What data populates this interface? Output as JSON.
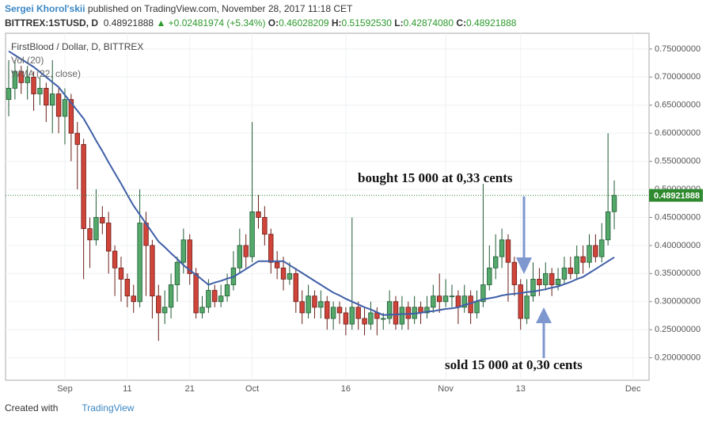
{
  "header": {
    "author": "Sergei Khorol'skii",
    "published": "published on TradingView.com, November 28, 2017 11:18 CET",
    "symbol": "BITTREX:1STUSD, D",
    "last": "0.48921888",
    "change": "+0.02481974 (+5.34%)",
    "o_label": "O:",
    "open": "0.46028209",
    "h_label": "H:",
    "high": "0.51592530",
    "l_label": "L:",
    "low": "0.42874080",
    "c_label": "C:",
    "close": "0.48921888"
  },
  "footer": {
    "created": "Created with",
    "brand": "TradingView"
  },
  "chart_data": {
    "type": "candlestick",
    "title": "FirstBlood / Dollar, D, BITTREX",
    "volume_label": "Vol (20)",
    "up_color": "#53a86a",
    "down_color": "#d0443a",
    "last_price_color": "#2f8a2f",
    "categories": [
      null,
      null,
      null,
      null,
      null,
      null,
      null,
      null,
      null,
      "Sep",
      null,
      null,
      null,
      null,
      null,
      null,
      null,
      null,
      null,
      "11",
      null,
      null,
      null,
      null,
      null,
      null,
      null,
      null,
      null,
      "21",
      null,
      null,
      null,
      null,
      null,
      null,
      null,
      null,
      null,
      "Oct",
      null,
      null,
      null,
      null,
      null,
      null,
      null,
      null,
      null,
      null,
      null,
      null,
      null,
      null,
      "16",
      null,
      null,
      null,
      null,
      null,
      null,
      null,
      null,
      null,
      null,
      null,
      null,
      null,
      null,
      null,
      "Nov",
      null,
      null,
      null,
      null,
      null,
      null,
      null,
      null,
      null,
      null,
      null,
      "13",
      null,
      null,
      null,
      null,
      null,
      null,
      null,
      null,
      null,
      null,
      null,
      null,
      null,
      null,
      null,
      null,
      null,
      "Dec"
    ],
    "open": [
      0.66,
      0.68,
      0.71,
      0.69,
      0.7,
      0.67,
      0.68,
      0.65,
      0.67,
      0.63,
      0.66,
      0.6,
      0.58,
      0.43,
      0.41,
      0.45,
      0.44,
      0.39,
      0.36,
      0.34,
      0.31,
      0.3,
      0.44,
      0.4,
      0.31,
      0.28,
      0.29,
      0.33,
      0.37,
      0.41,
      0.35,
      0.28,
      0.29,
      0.32,
      0.3,
      0.31,
      0.33,
      0.36,
      0.4,
      0.38,
      0.46,
      0.45,
      0.42,
      0.37,
      0.36,
      0.34,
      0.35,
      0.3,
      0.28,
      0.31,
      0.29,
      0.3,
      0.27,
      0.29,
      0.28,
      0.26,
      0.29,
      0.27,
      0.26,
      0.28,
      0.27,
      0.27,
      0.3,
      0.26,
      0.29,
      0.27,
      0.29,
      0.28,
      0.29,
      0.31,
      0.3,
      0.31,
      0.31,
      0.29,
      0.31,
      0.28,
      0.3,
      0.33,
      0.36,
      0.38,
      0.41,
      0.37,
      0.33,
      0.27,
      0.31,
      0.34,
      0.33,
      0.35,
      0.33,
      0.34,
      0.36,
      0.35,
      0.38,
      0.37,
      0.4,
      0.38,
      0.41,
      0.46028209,
      null,
      null,
      null
    ],
    "high": [
      0.73,
      0.73,
      0.72,
      0.72,
      0.71,
      0.7,
      0.69,
      0.73,
      0.68,
      0.68,
      0.67,
      0.62,
      0.59,
      0.45,
      0.5,
      0.47,
      0.46,
      0.4,
      0.38,
      0.35,
      0.33,
      0.5,
      0.46,
      0.41,
      0.33,
      0.32,
      0.35,
      0.38,
      0.43,
      0.42,
      0.36,
      0.31,
      0.34,
      0.33,
      0.33,
      0.35,
      0.39,
      0.43,
      0.42,
      0.62,
      0.49,
      0.47,
      0.43,
      0.39,
      0.38,
      0.37,
      0.36,
      0.32,
      0.33,
      0.32,
      0.32,
      0.31,
      0.3,
      0.3,
      0.29,
      0.45,
      0.3,
      0.29,
      0.3,
      0.29,
      0.28,
      0.32,
      0.31,
      0.31,
      0.3,
      0.31,
      0.3,
      0.31,
      0.33,
      0.35,
      0.34,
      0.33,
      0.32,
      0.33,
      0.32,
      0.32,
      0.51,
      0.4,
      0.42,
      0.43,
      0.42,
      0.38,
      0.34,
      0.34,
      0.37,
      0.36,
      0.37,
      0.36,
      0.36,
      0.38,
      0.38,
      0.4,
      0.4,
      0.42,
      0.42,
      0.44,
      0.6,
      0.5159253,
      null,
      null,
      null
    ],
    "low": [
      0.63,
      0.66,
      0.67,
      0.66,
      0.64,
      0.65,
      0.62,
      0.6,
      0.6,
      0.58,
      0.55,
      0.5,
      0.34,
      0.36,
      0.4,
      0.42,
      0.35,
      0.31,
      0.3,
      0.29,
      0.28,
      0.29,
      0.31,
      0.27,
      0.23,
      0.26,
      0.27,
      0.3,
      0.35,
      0.33,
      0.27,
      0.27,
      0.28,
      0.29,
      0.29,
      0.3,
      0.32,
      0.35,
      0.36,
      0.37,
      0.43,
      0.4,
      0.35,
      0.34,
      0.32,
      0.33,
      0.28,
      0.26,
      0.27,
      0.27,
      0.27,
      0.25,
      0.25,
      0.26,
      0.24,
      0.25,
      0.25,
      0.24,
      0.25,
      0.24,
      0.25,
      0.26,
      0.25,
      0.25,
      0.25,
      0.26,
      0.26,
      0.27,
      0.28,
      0.28,
      0.29,
      0.29,
      0.26,
      0.28,
      0.26,
      0.27,
      0.29,
      0.32,
      0.34,
      0.36,
      0.3,
      0.31,
      0.25,
      0.26,
      0.3,
      0.31,
      0.32,
      0.31,
      0.32,
      0.33,
      0.34,
      0.34,
      0.35,
      0.36,
      0.37,
      0.37,
      0.4,
      0.4287408,
      null,
      null,
      null
    ],
    "close": [
      0.68,
      0.71,
      0.69,
      0.7,
      0.67,
      0.68,
      0.65,
      0.67,
      0.63,
      0.66,
      0.6,
      0.58,
      0.43,
      0.41,
      0.45,
      0.44,
      0.39,
      0.36,
      0.34,
      0.31,
      0.3,
      0.44,
      0.4,
      0.31,
      0.28,
      0.29,
      0.33,
      0.37,
      0.41,
      0.35,
      0.28,
      0.29,
      0.32,
      0.3,
      0.31,
      0.33,
      0.36,
      0.4,
      0.38,
      0.46,
      0.45,
      0.42,
      0.37,
      0.36,
      0.34,
      0.35,
      0.3,
      0.28,
      0.31,
      0.29,
      0.3,
      0.27,
      0.29,
      0.28,
      0.26,
      0.29,
      0.27,
      0.26,
      0.28,
      0.27,
      0.27,
      0.3,
      0.26,
      0.29,
      0.27,
      0.29,
      0.28,
      0.29,
      0.31,
      0.3,
      0.31,
      0.31,
      0.29,
      0.31,
      0.28,
      0.3,
      0.33,
      0.36,
      0.38,
      0.41,
      0.37,
      0.33,
      0.27,
      0.31,
      0.34,
      0.33,
      0.35,
      0.33,
      0.34,
      0.36,
      0.35,
      0.38,
      0.37,
      0.4,
      0.38,
      0.41,
      0.46,
      0.48921888,
      null,
      null,
      null
    ],
    "ma": {
      "name": "WMA (22, close)",
      "color": "#3f5fa8",
      "values": [
        0.746,
        0.739,
        0.732,
        0.725,
        0.718,
        0.709,
        0.7,
        0.691,
        0.682,
        0.668,
        0.654,
        0.64,
        0.626,
        0.607,
        0.587,
        0.568,
        0.548,
        0.529,
        0.51,
        0.49,
        0.471,
        0.455,
        0.439,
        0.423,
        0.407,
        0.397,
        0.386,
        0.376,
        0.365,
        0.356,
        0.348,
        0.339,
        0.33,
        0.334,
        0.337,
        0.341,
        0.344,
        0.351,
        0.358,
        0.365,
        0.372,
        0.372,
        0.372,
        0.372,
        0.372,
        0.365,
        0.358,
        0.351,
        0.344,
        0.337,
        0.33,
        0.323,
        0.316,
        0.311,
        0.305,
        0.3,
        0.295,
        0.29,
        0.286,
        0.281,
        0.276,
        0.277,
        0.277,
        0.278,
        0.278,
        0.279,
        0.28,
        0.282,
        0.283,
        0.285,
        0.287,
        0.288,
        0.29,
        0.294,
        0.297,
        0.301,
        0.304,
        0.306,
        0.308,
        0.311,
        0.313,
        0.314,
        0.315,
        0.317,
        0.318,
        0.32,
        0.322,
        0.325,
        0.327,
        0.331,
        0.335,
        0.34,
        0.344,
        0.351,
        0.358,
        0.365,
        0.372,
        0.379,
        null,
        null,
        null
      ]
    },
    "ylim": [
      0.16,
      0.778
    ],
    "yticks": [
      {
        "value": 0.2,
        "label": "0.20000000"
      },
      {
        "value": 0.25,
        "label": "0.25000000"
      },
      {
        "value": 0.3,
        "label": "0.30000000"
      },
      {
        "value": 0.35,
        "label": "0.35000000"
      },
      {
        "value": 0.4,
        "label": "0.40000000"
      },
      {
        "value": 0.45,
        "label": "0.45000000"
      },
      {
        "value": 0.5,
        "label": "0.50000000"
      },
      {
        "value": 0.55,
        "label": "0.55000000"
      },
      {
        "value": 0.6,
        "label": "0.60000000"
      },
      {
        "value": 0.65,
        "label": "0.65000000"
      },
      {
        "value": 0.7,
        "label": "0.70000000"
      },
      {
        "value": 0.75,
        "label": "0.75000000"
      }
    ],
    "annotations": [
      "bought 15 000 at 0,33 cents",
      "sold 15 000 at 0,30 cents"
    ]
  }
}
